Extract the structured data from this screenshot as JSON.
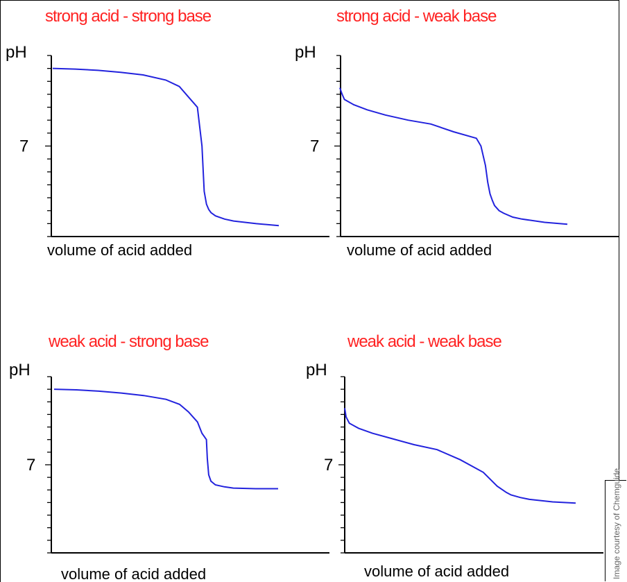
{
  "credit": "Image courtesy of Chemguide",
  "chart_data": [
    {
      "type": "line",
      "title": "strong acid - strong base",
      "xlabel": "volume of acid added",
      "ylabel": "pH",
      "y_tick_label": "7",
      "ylim": [
        0,
        14
      ],
      "color": "#2222dd",
      "x": [
        0,
        5,
        10,
        15,
        20,
        25,
        28,
        30,
        32,
        33,
        33.5,
        34,
        34.5,
        35,
        36,
        38,
        40,
        45,
        50
      ],
      "values": [
        13.0,
        12.95,
        12.85,
        12.7,
        12.5,
        12.1,
        11.6,
        10.8,
        10.0,
        7.0,
        3.5,
        2.5,
        2.1,
        1.85,
        1.6,
        1.35,
        1.2,
        1.0,
        0.85
      ]
    },
    {
      "type": "line",
      "title": "strong acid - weak base",
      "xlabel": "volume of acid added",
      "ylabel": "pH",
      "y_tick_label": "7",
      "ylim": [
        0,
        14
      ],
      "color": "#2222dd",
      "x": [
        0,
        0.5,
        1,
        3,
        6,
        10,
        15,
        20,
        25,
        30,
        31,
        32,
        32.5,
        33,
        33.5,
        34,
        35,
        36,
        38,
        40,
        45,
        50
      ],
      "values": [
        11.5,
        11.0,
        10.6,
        10.2,
        9.8,
        9.4,
        9.0,
        8.7,
        8.1,
        7.6,
        7.0,
        5.5,
        4.2,
        3.3,
        2.8,
        2.4,
        2.0,
        1.8,
        1.5,
        1.35,
        1.1,
        0.95
      ]
    },
    {
      "type": "line",
      "title": "weak acid - strong base",
      "xlabel": "volume of acid added",
      "ylabel": "pH",
      "y_tick_label": "7",
      "ylim": [
        0,
        14
      ],
      "color": "#2222dd",
      "x": [
        0,
        5,
        10,
        15,
        20,
        25,
        28,
        30,
        32,
        33,
        34,
        34.2,
        34.5,
        35,
        36,
        38,
        40,
        45,
        50
      ],
      "values": [
        13.0,
        12.95,
        12.85,
        12.7,
        12.5,
        12.2,
        11.8,
        11.2,
        10.4,
        9.5,
        9.0,
        7.5,
        6.2,
        5.7,
        5.4,
        5.25,
        5.15,
        5.1,
        5.1
      ]
    },
    {
      "type": "line",
      "title": "weak acid - weak base",
      "xlabel": "volume of acid added",
      "ylabel": "pH",
      "y_tick_label": "7",
      "ylim": [
        0,
        14
      ],
      "color": "#2222dd",
      "x": [
        0,
        0.3,
        1,
        3,
        6,
        10,
        15,
        20,
        25,
        30,
        33,
        35,
        36,
        38,
        40,
        45,
        50
      ],
      "values": [
        11.5,
        10.8,
        10.3,
        9.9,
        9.5,
        9.1,
        8.6,
        8.2,
        7.4,
        6.4,
        5.3,
        4.8,
        4.6,
        4.4,
        4.25,
        4.05,
        3.95
      ]
    }
  ]
}
